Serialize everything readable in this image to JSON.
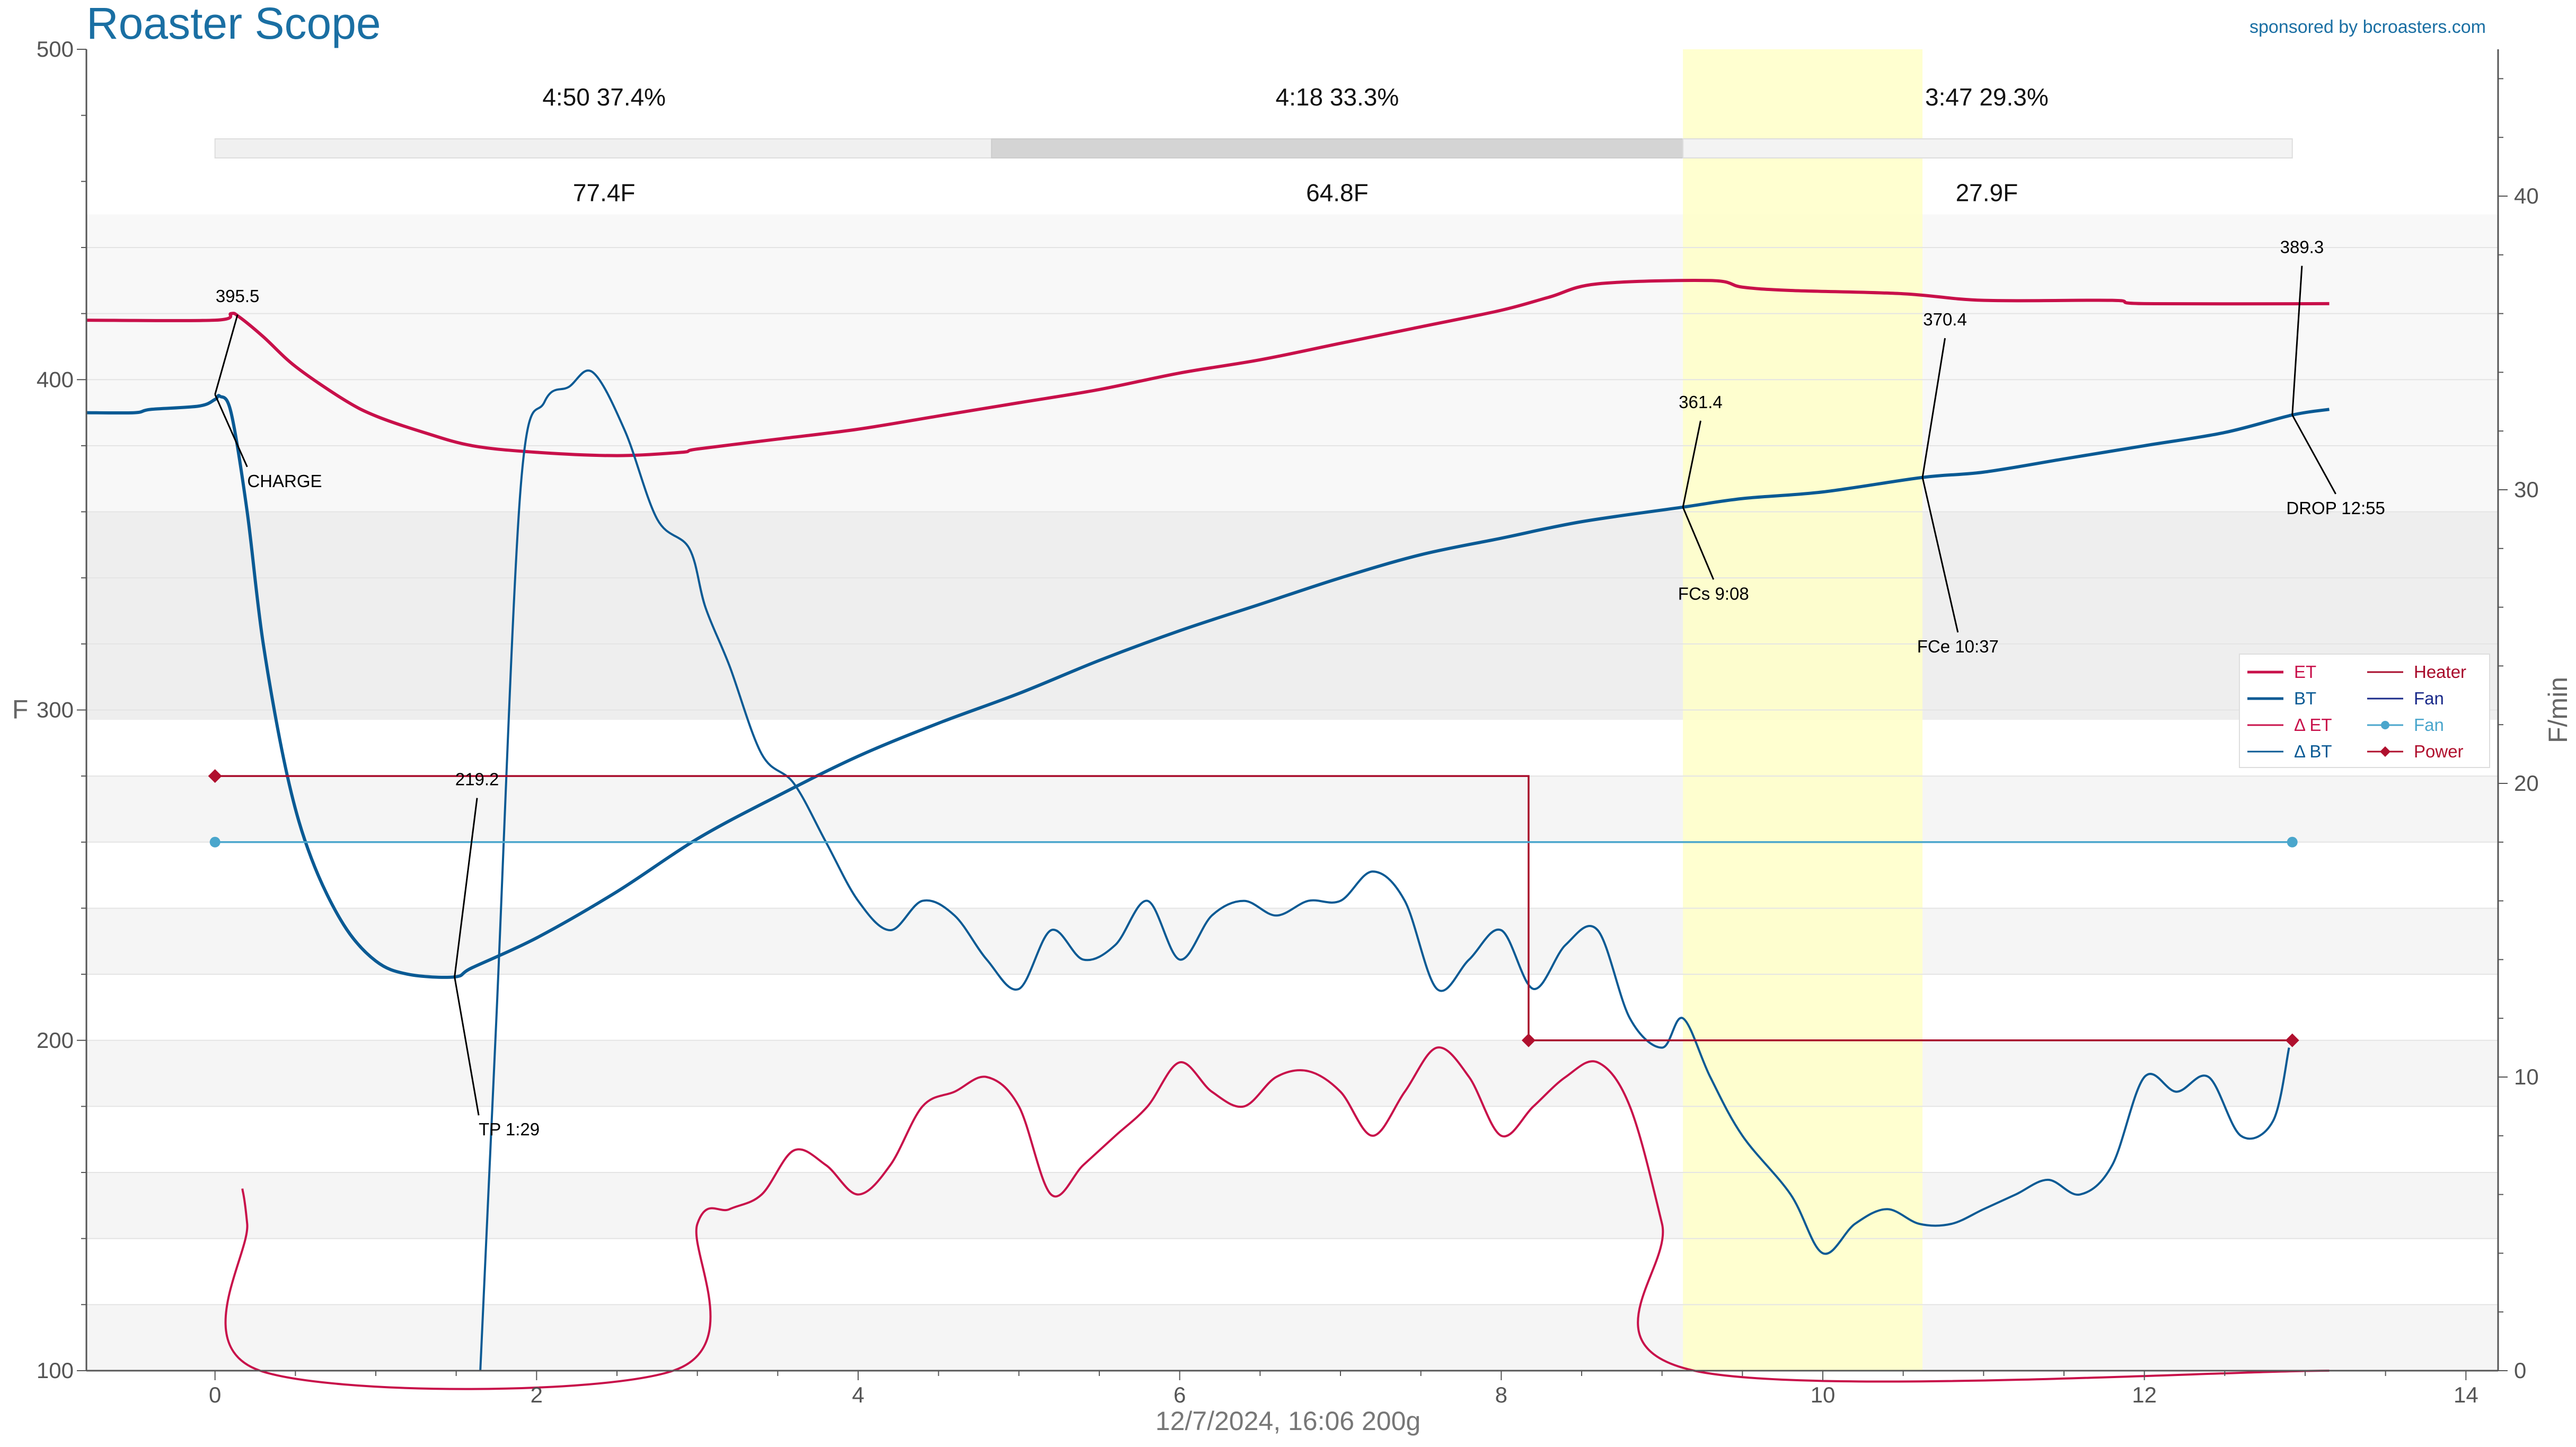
{
  "app": {
    "title": "Roaster Scope",
    "sponsor": "sponsored by bcroasters.com",
    "footer": "12/7/2024, 16:06   200g"
  },
  "colors": {
    "et": "#c8104a",
    "bt": "#0a5a94",
    "delta_et": "#c8104a",
    "delta_bt": "#0a5a94",
    "heater": "#a80a2a",
    "fan_line": "#1a2a8a",
    "fan_marker": "#4aa6cc",
    "power": "#b0102e",
    "highlight": "#ffffc8",
    "title": "#1a6fa3"
  },
  "phases": [
    {
      "time": "4:50",
      "percent": "37.4%",
      "delta": "77.4F"
    },
    {
      "time": "4:18",
      "percent": "33.3%",
      "delta": "64.8F"
    },
    {
      "time": "3:47",
      "percent": "29.3%",
      "delta": "27.9F"
    }
  ],
  "legend": [
    {
      "label": "ET",
      "key": "et",
      "style": "line"
    },
    {
      "label": "BT",
      "key": "bt",
      "style": "line"
    },
    {
      "label": "Δ ET",
      "key": "delta_et",
      "style": "line"
    },
    {
      "label": "Δ BT",
      "key": "delta_bt",
      "style": "line"
    },
    {
      "label": "Heater",
      "key": "heater",
      "style": "line"
    },
    {
      "label": "Fan",
      "key": "fan_line",
      "style": "line"
    },
    {
      "label": "Fan",
      "key": "fan_marker",
      "style": "dot"
    },
    {
      "label": "Power",
      "key": "power",
      "style": "diamond"
    }
  ],
  "chart_data": {
    "type": "line",
    "ylabel": "F",
    "y2label": "F/min",
    "xlim": [
      -0.8,
      14.2
    ],
    "ylim": [
      100,
      500
    ],
    "y2lim": [
      0,
      45
    ],
    "xticks": [
      0,
      2,
      4,
      6,
      8,
      10,
      12,
      14
    ],
    "yticks": [
      100,
      200,
      300,
      400,
      500
    ],
    "y2ticks": [
      0,
      10,
      20,
      30,
      40
    ],
    "first_crack_window": [
      9.13,
      10.62
    ],
    "series": [
      {
        "name": "ET",
        "axis": "left",
        "points": [
          [
            -0.8,
            418
          ],
          [
            0,
            418
          ],
          [
            0.1,
            420
          ],
          [
            0.15,
            419
          ],
          [
            0.3,
            413
          ],
          [
            0.5,
            404
          ],
          [
            0.8,
            394
          ],
          [
            1.0,
            389
          ],
          [
            1.3,
            384
          ],
          [
            1.6,
            380
          ],
          [
            2.0,
            378
          ],
          [
            2.5,
            377
          ],
          [
            2.9,
            378
          ],
          [
            3.0,
            379
          ],
          [
            3.5,
            382
          ],
          [
            4.0,
            385
          ],
          [
            4.5,
            389
          ],
          [
            5.0,
            393
          ],
          [
            5.5,
            397
          ],
          [
            6.0,
            402
          ],
          [
            6.5,
            406
          ],
          [
            7.0,
            411
          ],
          [
            7.5,
            416
          ],
          [
            8.0,
            421
          ],
          [
            8.3,
            425
          ],
          [
            8.6,
            429
          ],
          [
            9.3,
            430
          ],
          [
            9.5,
            428
          ],
          [
            9.8,
            427
          ],
          [
            10.5,
            426
          ],
          [
            11.0,
            424
          ],
          [
            11.8,
            424
          ],
          [
            12.0,
            423
          ],
          [
            13.15,
            423
          ]
        ]
      },
      {
        "name": "BT",
        "axis": "left",
        "points": [
          [
            -0.8,
            390
          ],
          [
            -0.5,
            390
          ],
          [
            -0.4,
            391
          ],
          [
            -0.1,
            392
          ],
          [
            0,
            394
          ],
          [
            0.03,
            395
          ],
          [
            0.1,
            390
          ],
          [
            0.2,
            360
          ],
          [
            0.3,
            320
          ],
          [
            0.45,
            280
          ],
          [
            0.6,
            255
          ],
          [
            0.8,
            235
          ],
          [
            1.0,
            224
          ],
          [
            1.2,
            220
          ],
          [
            1.49,
            219.2
          ],
          [
            1.6,
            222
          ],
          [
            2.0,
            231
          ],
          [
            2.5,
            245
          ],
          [
            3.0,
            261
          ],
          [
            3.5,
            274
          ],
          [
            4.0,
            286
          ],
          [
            4.5,
            296
          ],
          [
            5.0,
            305
          ],
          [
            5.5,
            315
          ],
          [
            6.0,
            324
          ],
          [
            6.5,
            332
          ],
          [
            7.0,
            340
          ],
          [
            7.5,
            347
          ],
          [
            8.0,
            352
          ],
          [
            8.5,
            357
          ],
          [
            9.13,
            361.4
          ],
          [
            9.5,
            364
          ],
          [
            10.0,
            366
          ],
          [
            10.62,
            370.4
          ],
          [
            11.0,
            372
          ],
          [
            11.5,
            376
          ],
          [
            12.0,
            380
          ],
          [
            12.5,
            384
          ],
          [
            12.92,
            389.3
          ],
          [
            13.15,
            391
          ]
        ]
      },
      {
        "name": "Δ BT",
        "axis": "right",
        "points": [
          [
            1.65,
            0
          ],
          [
            1.75,
            12
          ],
          [
            1.9,
            30
          ],
          [
            2.05,
            33
          ],
          [
            2.2,
            33.5
          ],
          [
            2.35,
            34
          ],
          [
            2.55,
            32
          ],
          [
            2.75,
            29
          ],
          [
            2.95,
            28
          ],
          [
            3.05,
            26
          ],
          [
            3.2,
            24
          ],
          [
            3.4,
            21
          ],
          [
            3.6,
            20
          ],
          [
            3.8,
            18
          ],
          [
            4.0,
            16
          ],
          [
            4.2,
            15
          ],
          [
            4.4,
            16
          ],
          [
            4.6,
            15.5
          ],
          [
            4.8,
            14
          ],
          [
            5.0,
            13
          ],
          [
            5.2,
            15
          ],
          [
            5.4,
            14
          ],
          [
            5.6,
            14.5
          ],
          [
            5.8,
            16
          ],
          [
            6.0,
            14
          ],
          [
            6.2,
            15.5
          ],
          [
            6.4,
            16
          ],
          [
            6.6,
            15.5
          ],
          [
            6.8,
            16
          ],
          [
            7.0,
            16
          ],
          [
            7.2,
            17
          ],
          [
            7.4,
            16
          ],
          [
            7.6,
            13
          ],
          [
            7.8,
            14
          ],
          [
            8.0,
            15
          ],
          [
            8.2,
            13
          ],
          [
            8.4,
            14.5
          ],
          [
            8.6,
            15
          ],
          [
            8.8,
            12
          ],
          [
            9.0,
            11
          ],
          [
            9.13,
            12
          ],
          [
            9.3,
            10
          ],
          [
            9.5,
            8
          ],
          [
            9.8,
            6
          ],
          [
            10.0,
            4
          ],
          [
            10.2,
            5
          ],
          [
            10.4,
            5.5
          ],
          [
            10.6,
            5
          ],
          [
            10.8,
            5
          ],
          [
            11.0,
            5.5
          ],
          [
            11.2,
            6
          ],
          [
            11.4,
            6.5
          ],
          [
            11.6,
            6
          ],
          [
            11.8,
            7
          ],
          [
            12.0,
            10
          ],
          [
            12.2,
            9.5
          ],
          [
            12.4,
            10
          ],
          [
            12.6,
            8
          ],
          [
            12.8,
            8.5
          ],
          [
            12.9,
            11
          ]
        ]
      },
      {
        "name": "Δ ET",
        "axis": "right",
        "points": [
          [
            0.17,
            6.2
          ],
          [
            0.2,
            5
          ],
          [
            0.28,
            0
          ],
          [
            2.85,
            0
          ],
          [
            3.0,
            5
          ],
          [
            3.2,
            5.5
          ],
          [
            3.4,
            6
          ],
          [
            3.6,
            7.5
          ],
          [
            3.8,
            7
          ],
          [
            4.0,
            6
          ],
          [
            4.2,
            7
          ],
          [
            4.4,
            9
          ],
          [
            4.6,
            9.5
          ],
          [
            4.8,
            10
          ],
          [
            5.0,
            9
          ],
          [
            5.2,
            6
          ],
          [
            5.4,
            7
          ],
          [
            5.6,
            8
          ],
          [
            5.8,
            9
          ],
          [
            6.0,
            10.5
          ],
          [
            6.2,
            9.5
          ],
          [
            6.4,
            9
          ],
          [
            6.6,
            10
          ],
          [
            6.8,
            10.2
          ],
          [
            7.0,
            9.5
          ],
          [
            7.2,
            8
          ],
          [
            7.4,
            9.5
          ],
          [
            7.6,
            11
          ],
          [
            7.8,
            10
          ],
          [
            8.0,
            8
          ],
          [
            8.2,
            9
          ],
          [
            8.4,
            10
          ],
          [
            8.6,
            10.5
          ],
          [
            8.8,
            9
          ],
          [
            9.0,
            5
          ],
          [
            9.2,
            0
          ],
          [
            13.15,
            0
          ]
        ]
      },
      {
        "name": "Power",
        "axis": "left",
        "points": [
          [
            0,
            280
          ],
          [
            8.17,
            280
          ],
          [
            8.17,
            200
          ],
          [
            12.92,
            200
          ]
        ]
      },
      {
        "name": "Fan",
        "axis": "left",
        "points": [
          [
            0,
            260
          ],
          [
            12.92,
            260
          ]
        ]
      }
    ],
    "annotations": [
      {
        "label": "CHARGE",
        "x": 0,
        "y": 395.5,
        "value": "395.5"
      },
      {
        "label": "TP 1:29",
        "x": 1.49,
        "y": 219.2,
        "value": "219.2"
      },
      {
        "label": "FCs 9:08",
        "x": 9.13,
        "y": 361.4,
        "value": "361.4"
      },
      {
        "label": "FCe 10:37",
        "x": 10.62,
        "y": 370.4,
        "value": "370.4"
      },
      {
        "label": "DROP 12:55",
        "x": 12.92,
        "y": 389.3,
        "value": "389.3"
      }
    ]
  }
}
